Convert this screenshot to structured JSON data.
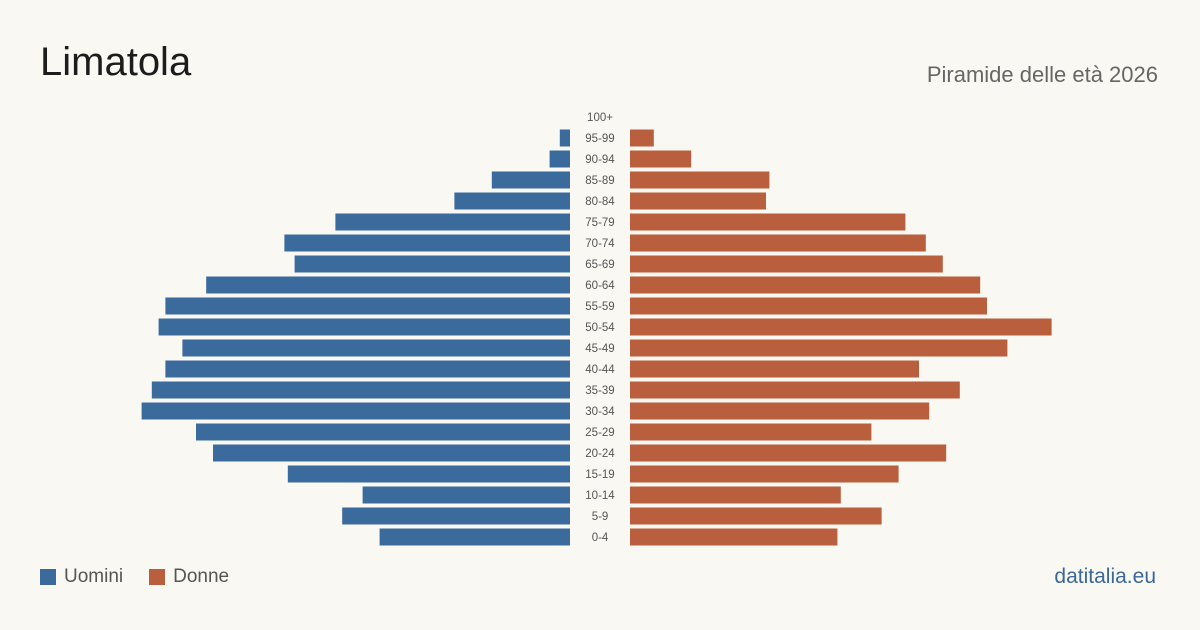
{
  "header": {
    "title": "Limatola",
    "subtitle": "Piramide delle età 2026"
  },
  "legend": {
    "men_label": "Uomini",
    "women_label": "Donne"
  },
  "footer": {
    "source": "datitalia.eu"
  },
  "colors": {
    "men": "#3b6a9c",
    "women": "#b95f3d",
    "label": "#555555"
  },
  "chart_data": {
    "type": "bar",
    "orientation": "horizontal",
    "categories": [
      "100+",
      "95-99",
      "90-94",
      "85-89",
      "80-84",
      "75-79",
      "70-74",
      "65-69",
      "60-64",
      "55-59",
      "50-54",
      "45-49",
      "40-44",
      "35-39",
      "30-34",
      "25-29",
      "20-24",
      "15-19",
      "10-14",
      "5-9",
      "0-4"
    ],
    "series": [
      {
        "name": "Uomini",
        "values": [
          0,
          3,
          6,
          23,
          34,
          69,
          84,
          81,
          107,
          119,
          121,
          114,
          119,
          123,
          126,
          110,
          105,
          83,
          61,
          67,
          56
        ]
      },
      {
        "name": "Donne",
        "values": [
          0,
          7,
          18,
          41,
          40,
          81,
          87,
          92,
          103,
          105,
          124,
          111,
          85,
          97,
          88,
          71,
          93,
          79,
          62,
          74,
          61
        ]
      }
    ],
    "xlim": [
      0,
      130
    ],
    "legend_position": "bottom-left",
    "grid": false
  }
}
